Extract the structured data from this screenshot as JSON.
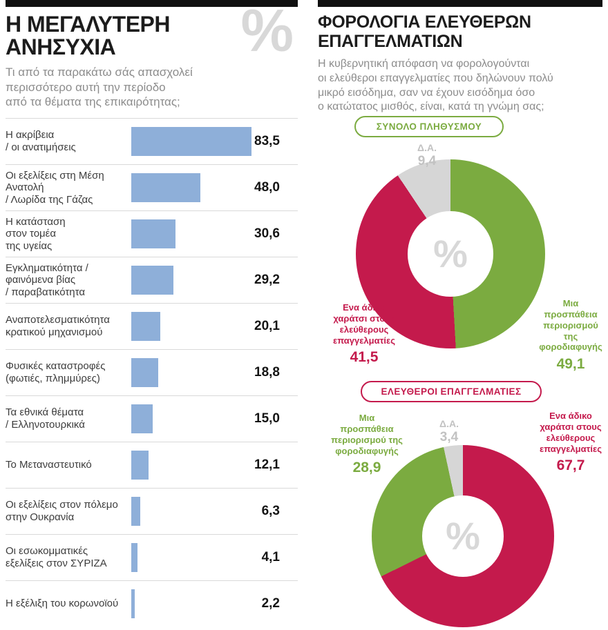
{
  "colors": {
    "bar_blue": "#8eafd9",
    "green": "#7bab40",
    "red": "#c41a4c",
    "gray_segment": "#d6d6d6",
    "muted_text": "#c2c2c2",
    "watermark": "#d8d8d8"
  },
  "left_panel": {
    "title": "Η ΜΕΓΑΛΥΤΕΡΗ\nΑΝΗΣΥΧΙΑ",
    "percent_watermark": "%",
    "subtitle": "Τι από τα παρακάτω σάς απασχολεί\nπερισσότερο αυτή την περίοδο\nαπό τα θέματα της επικαιρότητας;"
  },
  "right_panel": {
    "title": "ΦΟΡΟΛΟΓΙΑ ΕΛΕΥΘΕΡΩΝ\nΕΠΑΓΓΕΛΜΑΤΙΩΝ",
    "subtitle": "Η κυβερνητική απόφαση να φορολογούνται\nοι ελεύθεροι επαγγελματίες που δηλώνουν πολύ\nμικρό εισόδημα, σαν να έχουν εισόδημα όσο\nο κατώτατος μισθός, είναι, κατά τη γνώμη σας;",
    "percent_watermark": "%"
  },
  "chart_data": [
    {
      "type": "bar",
      "orientation": "horizontal",
      "title": "Η ΜΕΓΑΛΥΤΕΡΗ ΑΝΗΣΥΧΙΑ",
      "categories": [
        "Η ακρίβεια\n/ οι ανατιμήσεις",
        "Οι εξελίξεις στη Μέση\nΑνατολή\n / Λωρίδα της Γάζας",
        "Η κατάσταση\nστον τομέα\nτης υγείας",
        "Εγκληματικότητα /\nφαινόμενα βίας\n/ παραβατικότητα",
        "Αναποτελεσματικότητα\nκρατικού μηχανισμού",
        "Φυσικές καταστροφές\n(φωτιές, πλημμύρες)",
        "Τα εθνικά θέματα\n/ Ελληνοτουρκικά",
        "Το Μεταναστευτικό",
        "Οι εξελίξεις στον πόλεμο\nστην Ουκρανία",
        "Οι εσωκομματικές\nεξελίξεις στον ΣΥΡΙΖΑ",
        "Η εξέλιξη του κορωνοϊού"
      ],
      "values": [
        83.5,
        48.0,
        30.6,
        29.2,
        20.1,
        18.8,
        15.0,
        12.1,
        6.3,
        4.1,
        2.2
      ],
      "value_labels": [
        "83,5",
        "48,0",
        "30,6",
        "29,2",
        "20,1",
        "18,8",
        "15,0",
        "12,1",
        "6,3",
        "4,1",
        "2,2"
      ],
      "bar_color": "#8eafd9",
      "xlim": [
        0,
        100
      ]
    },
    {
      "type": "donut",
      "title": "ΣΥΝΟΛΟ ΠΛΗΘΥΣΜΟΥ",
      "title_color": "#7bab40",
      "center_symbol": "%",
      "segments": [
        {
          "name": "Μια προσπάθεια περιορισμού της φοροδιαφυγής",
          "label_lines": "Μια\nπροσπάθεια\nπεριορισμού της\nφοροδιαφυγής",
          "value": 49.1,
          "value_label": "49,1",
          "color": "#7bab40"
        },
        {
          "name": "Ενα άδικο χαράτσι στους ελεύθερους επαγγελματίες",
          "label_lines": "Ενα άδικο\nχαράτσι στους\nελεύθερους\nεπαγγελματίες",
          "value": 41.5,
          "value_label": "41,5",
          "color": "#c41a4c"
        },
        {
          "name": "Δ.Α.",
          "label_lines": "Δ.Α.",
          "value": 9.4,
          "value_label": "9,4",
          "color": "#d6d6d6"
        }
      ]
    },
    {
      "type": "donut",
      "title": "ΕΛΕΥΘΕΡΟΙ ΕΠΑΓΓΕΛΜΑΤΙΕΣ",
      "title_color": "#c41a4c",
      "center_symbol": "%",
      "segments": [
        {
          "name": "Ενα άδικο χαράτσι στους ελεύθερους επαγγελματίες",
          "label_lines": "Ενα άδικο\nχαράτσι στους\nελεύθερους\nεπαγγελματίες",
          "value": 67.7,
          "value_label": "67,7",
          "color": "#c41a4c"
        },
        {
          "name": "Μια προσπάθεια περιορισμού της φοροδιαφυγής",
          "label_lines": "Μια\nπροσπάθεια\nπεριορισμού της\nφοροδιαφυγής",
          "value": 28.9,
          "value_label": "28,9",
          "color": "#7bab40"
        },
        {
          "name": "Δ.Α.",
          "label_lines": "Δ.Α.",
          "value": 3.4,
          "value_label": "3,4",
          "color": "#d6d6d6"
        }
      ]
    }
  ]
}
